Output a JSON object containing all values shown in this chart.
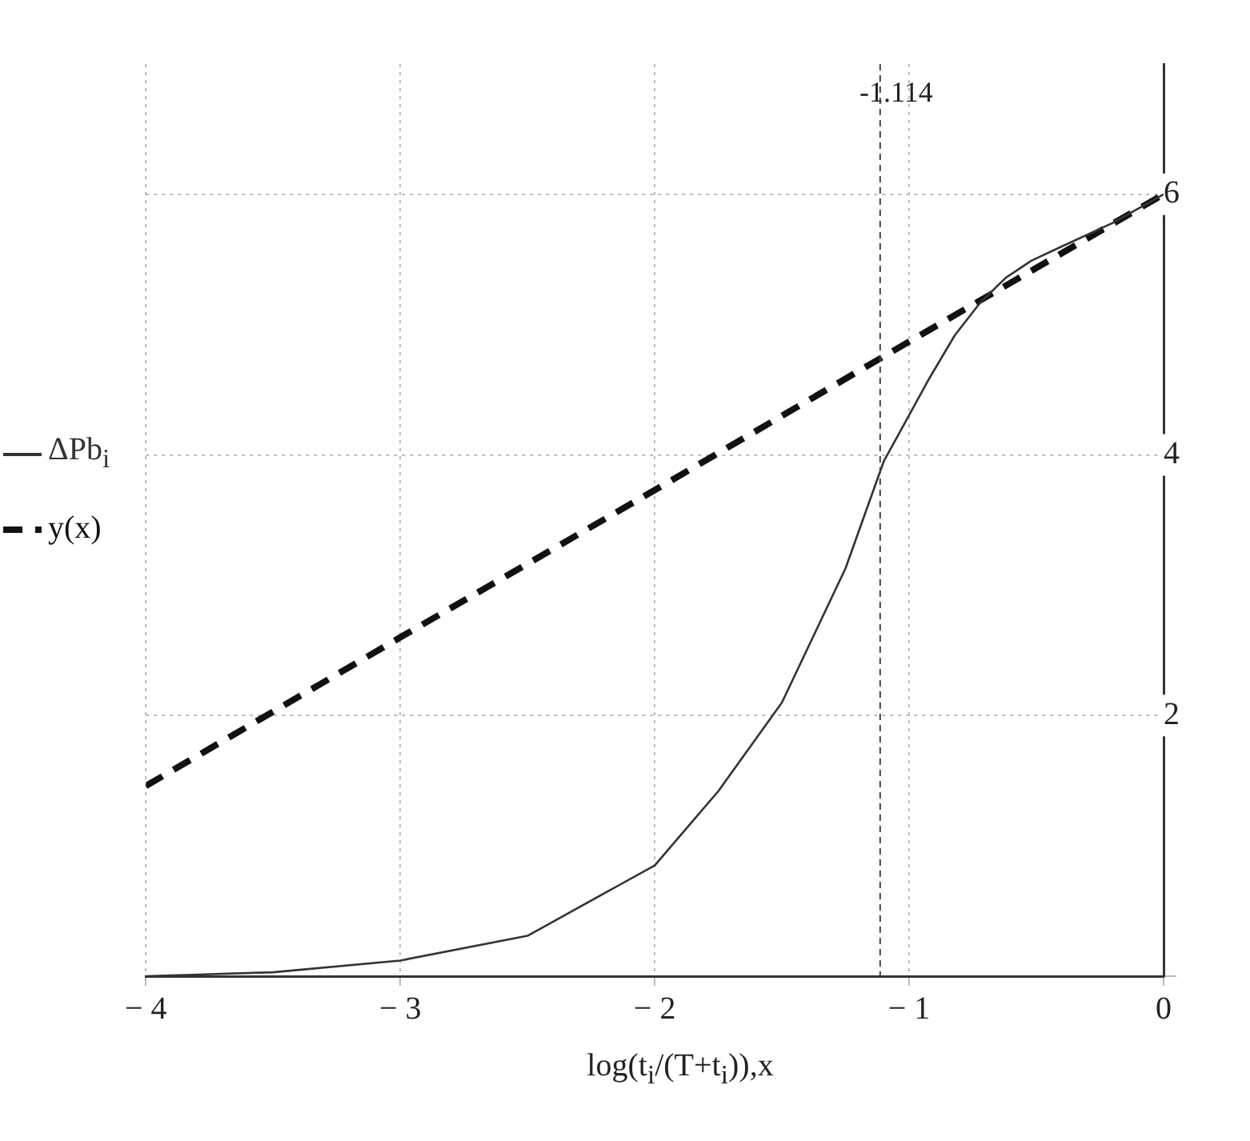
{
  "chart_data": {
    "type": "line",
    "xlabel": "log(t$_{i}$/(T+t$_{i}$)),x",
    "legend": "left",
    "grid": true,
    "xlim": [
      -4,
      0
    ],
    "xticks": [
      -4,
      -3,
      -2,
      -1,
      0
    ],
    "ylim": [
      0,
      7
    ],
    "yticks": [
      {
        "value": 0,
        "label": null
      },
      2,
      4,
      6
    ],
    "series": [
      {
        "name": "ΔPb$_{i}$",
        "color": "#333333",
        "line_style": "solid",
        "x": [
          -4,
          -3.5,
          -3,
          -2.5,
          -2,
          -1.75,
          -1.5,
          -1.25,
          -1.1,
          -0.92,
          -0.82,
          -0.72,
          -0.62,
          -0.52,
          -0.4,
          -0.2,
          0
        ],
        "values": [
          0,
          0.03,
          0.12,
          0.31,
          0.85,
          1.42,
          2.1,
          3.13,
          3.95,
          4.59,
          4.92,
          5.17,
          5.36,
          5.49,
          5.6,
          5.78,
          6.0
        ]
      },
      {
        "name": "y(x)",
        "color": "#111111",
        "line_style": "dashed",
        "x": [
          -4,
          -3,
          -2,
          -1,
          0
        ],
        "values": [
          1.46,
          2.6,
          3.73,
          4.87,
          6.0
        ]
      }
    ],
    "ref_lines": [
      {
        "axis": "x",
        "value": -1.114,
        "label": "-1.114",
        "line_style": "dashed"
      }
    ]
  }
}
